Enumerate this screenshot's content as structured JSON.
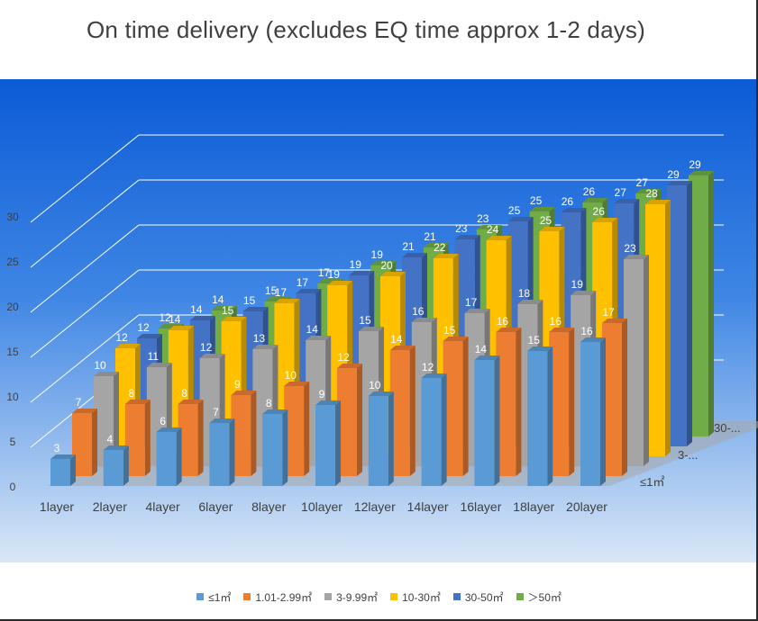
{
  "chart_data": {
    "type": "bar",
    "title": "On time delivery (excludes EQ time approx 1-2 days)",
    "subtitle": "",
    "xlabel": "",
    "ylabel": "",
    "style": "3d-column",
    "ylim": [
      0,
      30
    ],
    "yticks": [
      "0",
      "5",
      "10",
      "15",
      "20",
      "25",
      "30"
    ],
    "grid": true,
    "legend_position": "bottom",
    "categories": [
      "1layer",
      "2layer",
      "4layer",
      "6layer",
      "8layer",
      "10layer",
      "12layer",
      "14layer",
      "16layer",
      "18layer",
      "20layer"
    ],
    "depth_labels": [
      "≤1㎡",
      "3-...",
      "30-..."
    ],
    "series": [
      {
        "name": "≤1㎡",
        "color": "#5b9bd5",
        "values": [
          3,
          4,
          6,
          7,
          8,
          9,
          10,
          12,
          14,
          15,
          16
        ]
      },
      {
        "name": "1.01-2.99㎡",
        "color": "#ed7d31",
        "values": [
          7,
          8,
          8,
          9,
          10,
          12,
          14,
          15,
          16,
          16,
          17
        ]
      },
      {
        "name": "3-9.99㎡",
        "color": "#a5a5a5",
        "values": [
          10,
          11,
          12,
          13,
          14,
          15,
          16,
          17,
          18,
          19,
          23
        ]
      },
      {
        "name": "10-30㎡",
        "color": "#ffc000",
        "values": [
          12,
          14,
          15,
          17,
          19,
          20,
          22,
          24,
          25,
          26,
          28
        ]
      },
      {
        "name": "30-50㎡",
        "color": "#4472c4",
        "values": [
          12,
          14,
          15,
          17,
          19,
          21,
          23,
          25,
          26,
          27,
          29
        ]
      },
      {
        "name": "＞50㎡",
        "color": "#70ad47",
        "values": [
          12,
          14,
          15,
          17,
          19,
          21,
          23,
          25,
          26,
          27,
          29
        ]
      }
    ],
    "colors": {
      "plot_top": "#0b5bd6",
      "plot_bottom": "#d9e7f6",
      "gridline": "#ffffff",
      "floor": "#a8a8a8",
      "label_on_dark": "#ffffff",
      "label_on_light": "#ffffff",
      "axis_text": "#404040"
    }
  }
}
